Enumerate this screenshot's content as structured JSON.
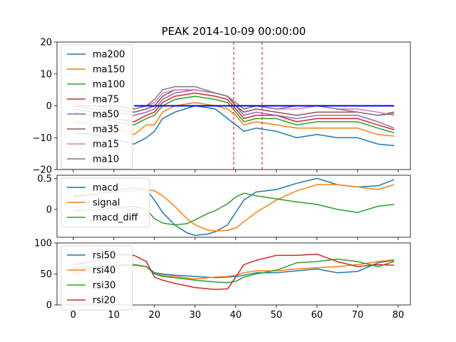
{
  "figure_title": "PEAK 2014-10-09 00:00:00",
  "chart_data": [
    {
      "type": "line",
      "panel": "moving-averages",
      "title": "PEAK 2014-10-09 00:00:00",
      "xlim": [
        -4,
        83
      ],
      "ylim": [
        -20,
        20
      ],
      "yticks": [
        -20,
        -10,
        0,
        10,
        20
      ],
      "vlines": [
        39.5,
        46.5
      ],
      "vline_color": "#ff0000",
      "hline": {
        "x": [
          15,
          79
        ],
        "y": 0,
        "color": "#0000ff"
      },
      "legend_position": "upper-left",
      "series": [
        {
          "name": "ma200",
          "color": "#1f77b4",
          "x": [
            0,
            5,
            10,
            15,
            18,
            20,
            22,
            25,
            30,
            35,
            38,
            40,
            42,
            45,
            50,
            55,
            60,
            65,
            70,
            75,
            79
          ],
          "y": [
            -8.5,
            -9,
            -10.5,
            -12,
            -10,
            -8,
            -4,
            -2,
            0,
            -1,
            -4,
            -6,
            -8,
            -7,
            -8,
            -10,
            -9,
            -10,
            -10,
            -12,
            -12.5
          ]
        },
        {
          "name": "ma150",
          "color": "#ff7f0e",
          "x": [
            0,
            5,
            10,
            15,
            18,
            20,
            22,
            25,
            30,
            35,
            38,
            40,
            42,
            45,
            50,
            55,
            60,
            65,
            70,
            75,
            79
          ],
          "y": [
            -5,
            -6,
            -7,
            -9,
            -6,
            -6,
            -2,
            0,
            1,
            0,
            -1,
            -3,
            -6,
            -5,
            -6,
            -7,
            -7,
            -7,
            -7,
            -9,
            -9.5
          ]
        },
        {
          "name": "ma100",
          "color": "#2ca02c",
          "x": [
            0,
            5,
            10,
            15,
            18,
            20,
            22,
            25,
            30,
            35,
            38,
            40,
            42,
            45,
            50,
            55,
            60,
            65,
            70,
            75,
            79
          ],
          "y": [
            -2,
            -3,
            -5,
            -6,
            -4,
            -3,
            0,
            2,
            3,
            2,
            1,
            -2,
            -5,
            -4,
            -4,
            -6,
            -5,
            -5,
            -5,
            -7,
            -8.5
          ]
        },
        {
          "name": "ma75",
          "color": "#d62728",
          "x": [
            0,
            5,
            10,
            15,
            18,
            20,
            22,
            25,
            30,
            35,
            38,
            40,
            42,
            45,
            50,
            55,
            60,
            65,
            70,
            75,
            79
          ],
          "y": [
            -1,
            -2,
            -4,
            -5,
            -3,
            -2,
            1,
            3,
            4,
            3,
            2,
            -1,
            -4,
            -3,
            -3,
            -5,
            -4,
            -4,
            -4,
            -6,
            -7.5
          ]
        },
        {
          "name": "ma50",
          "color": "#9467bd",
          "x": [
            0,
            5,
            10,
            15,
            18,
            20,
            22,
            25,
            30,
            35,
            38,
            40,
            42,
            45,
            50,
            55,
            60,
            65,
            70,
            75,
            79
          ],
          "y": [
            0,
            -1,
            -2,
            -3,
            -2,
            -1,
            2,
            4,
            5,
            4,
            3,
            0,
            -3,
            -2,
            -3,
            -4,
            -3,
            -3,
            -3,
            -5,
            -7
          ]
        },
        {
          "name": "ma35",
          "color": "#8c564b",
          "x": [
            0,
            5,
            10,
            15,
            18,
            20,
            22,
            25,
            30,
            35,
            38,
            40,
            42,
            45,
            50,
            55,
            60,
            65,
            70,
            75,
            79
          ],
          "y": [
            0,
            0,
            -1,
            -2,
            -1,
            0,
            3,
            5,
            5,
            4,
            3,
            0,
            -2,
            -1,
            -2,
            -3,
            -2,
            -2,
            -2,
            -3,
            -2
          ]
        },
        {
          "name": "ma15",
          "color": "#e377c2",
          "x": [
            0,
            5,
            10,
            15,
            18,
            20,
            22,
            25,
            30,
            35,
            38,
            40,
            42,
            45,
            50,
            55,
            60,
            65,
            70,
            75,
            79
          ],
          "y": [
            0,
            0,
            0,
            -1,
            0,
            1,
            4,
            5,
            5,
            4,
            3,
            1,
            -1,
            0,
            -1,
            -1,
            0,
            -1,
            -1,
            -2,
            -3
          ]
        },
        {
          "name": "ma10",
          "color": "#7f7f7f",
          "x": [
            0,
            5,
            10,
            15,
            18,
            20,
            22,
            25,
            30,
            35,
            38,
            40,
            42,
            45,
            50,
            55,
            60,
            65,
            70,
            75,
            79
          ],
          "y": [
            0,
            0,
            0,
            -1,
            0,
            2,
            5,
            6,
            6,
            4,
            3,
            1,
            -1,
            0,
            -1,
            0,
            0,
            -1,
            -2,
            -3,
            -2.5
          ]
        }
      ]
    },
    {
      "type": "line",
      "panel": "macd",
      "xlim": [
        -4,
        83
      ],
      "ylim": [
        -0.45,
        0.55
      ],
      "yticks": [
        0.0,
        0.5
      ],
      "legend_position": "upper-left",
      "series": [
        {
          "name": "macd",
          "color": "#1f77b4",
          "x": [
            0,
            5,
            10,
            15,
            18,
            20,
            22,
            25,
            28,
            30,
            33,
            35,
            38,
            40,
            42,
            45,
            50,
            55,
            60,
            65,
            70,
            75,
            79
          ],
          "y": [
            0.2,
            0.24,
            0.3,
            0.35,
            0.32,
            0.15,
            -0.05,
            -0.25,
            -0.38,
            -0.42,
            -0.4,
            -0.36,
            -0.25,
            -0.05,
            0.15,
            0.28,
            0.32,
            0.42,
            0.5,
            0.4,
            0.36,
            0.38,
            0.48
          ]
        },
        {
          "name": "signal",
          "color": "#ff7f0e",
          "x": [
            0,
            5,
            10,
            15,
            18,
            20,
            22,
            25,
            28,
            30,
            33,
            35,
            38,
            40,
            42,
            45,
            50,
            55,
            60,
            65,
            70,
            75,
            79
          ],
          "y": [
            0.22,
            0.25,
            0.28,
            0.3,
            0.32,
            0.3,
            0.22,
            0.05,
            -0.15,
            -0.25,
            -0.33,
            -0.35,
            -0.34,
            -0.3,
            -0.2,
            -0.05,
            0.15,
            0.3,
            0.4,
            0.4,
            0.36,
            0.32,
            0.4
          ]
        },
        {
          "name": "macd_diff",
          "color": "#2ca02c",
          "x": [
            0,
            5,
            10,
            15,
            18,
            20,
            22,
            25,
            28,
            30,
            33,
            35,
            38,
            40,
            42,
            45,
            50,
            55,
            60,
            65,
            70,
            75,
            79
          ],
          "y": [
            -0.02,
            -0.01,
            0.02,
            0.05,
            0.0,
            -0.15,
            -0.22,
            -0.25,
            -0.23,
            -0.17,
            -0.07,
            -0.02,
            0.09,
            0.2,
            0.26,
            0.22,
            0.17,
            0.12,
            0.08,
            0.0,
            -0.05,
            0.05,
            0.08
          ]
        }
      ]
    },
    {
      "type": "line",
      "panel": "rsi",
      "xlim": [
        -4,
        83
      ],
      "ylim": [
        0,
        100
      ],
      "yticks": [
        0,
        50,
        100
      ],
      "xticks": [
        0,
        10,
        20,
        30,
        40,
        50,
        60,
        70,
        80
      ],
      "legend_position": "upper-left",
      "series": [
        {
          "name": "rsi50",
          "color": "#1f77b4",
          "x": [
            0,
            5,
            10,
            15,
            18,
            20,
            22,
            25,
            30,
            35,
            38,
            40,
            42,
            45,
            50,
            55,
            60,
            65,
            70,
            75,
            79
          ],
          "y": [
            55,
            60,
            62,
            65,
            62,
            52,
            50,
            48,
            46,
            44,
            45,
            46,
            48,
            52,
            52,
            55,
            58,
            52,
            54,
            68,
            72
          ]
        },
        {
          "name": "rsi40",
          "color": "#ff7f0e",
          "x": [
            0,
            5,
            10,
            15,
            18,
            20,
            22,
            25,
            30,
            35,
            38,
            40,
            42,
            45,
            50,
            55,
            60,
            65,
            70,
            75,
            79
          ],
          "y": [
            50,
            58,
            62,
            64,
            62,
            50,
            48,
            46,
            42,
            45,
            46,
            48,
            52,
            55,
            55,
            58,
            60,
            62,
            65,
            70,
            73
          ]
        },
        {
          "name": "rsi30",
          "color": "#2ca02c",
          "x": [
            0,
            5,
            10,
            15,
            18,
            20,
            22,
            25,
            30,
            35,
            38,
            40,
            42,
            45,
            50,
            55,
            60,
            65,
            70,
            75,
            79
          ],
          "y": [
            60,
            62,
            64,
            65,
            62,
            50,
            46,
            44,
            40,
            37,
            36,
            38,
            45,
            50,
            56,
            68,
            70,
            74,
            70,
            62,
            70
          ]
        },
        {
          "name": "rsi20",
          "color": "#d62728",
          "x": [
            0,
            5,
            10,
            15,
            18,
            20,
            22,
            25,
            30,
            35,
            38,
            40,
            42,
            45,
            50,
            55,
            60,
            65,
            70,
            75,
            79
          ],
          "y": [
            65,
            70,
            82,
            80,
            70,
            45,
            40,
            35,
            28,
            25,
            26,
            45,
            65,
            72,
            80,
            80,
            82,
            70,
            62,
            65,
            64
          ]
        }
      ]
    }
  ]
}
